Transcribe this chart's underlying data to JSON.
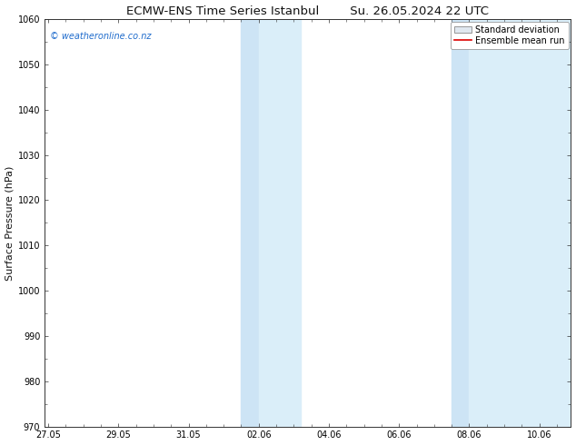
{
  "title": "ECMW-ENS Time Series Istanbul        Su. 26.05.2024 22 UTC",
  "ylabel": "Surface Pressure (hPa)",
  "ylim": [
    970,
    1060
  ],
  "yticks": [
    970,
    980,
    990,
    1000,
    1010,
    1020,
    1030,
    1040,
    1050,
    1060
  ],
  "xtick_labels": [
    "27.05",
    "29.05",
    "31.05",
    "02.06",
    "04.06",
    "06.06",
    "08.06",
    "10.06"
  ],
  "xtick_positions": [
    0,
    2,
    4,
    6,
    8,
    10,
    12,
    14
  ],
  "x_min": -0.1,
  "x_max": 14.9,
  "shaded_bands": [
    {
      "x_start": 5.5,
      "x_end": 6.0,
      "color": "#cde4f5",
      "alpha": 1.0
    },
    {
      "x_start": 6.0,
      "x_end": 7.2,
      "color": "#daeef9",
      "alpha": 1.0
    },
    {
      "x_start": 11.5,
      "x_end": 12.0,
      "color": "#cde4f5",
      "alpha": 1.0
    },
    {
      "x_start": 12.0,
      "x_end": 14.9,
      "color": "#daeef9",
      "alpha": 1.0
    }
  ],
  "watermark_text": "© weatheronline.co.nz",
  "watermark_color": "#1e6bcc",
  "watermark_fontsize": 7,
  "legend_std_label": "Standard deviation",
  "legend_mean_label": "Ensemble mean run",
  "legend_mean_color": "#dd0000",
  "background_color": "#ffffff",
  "spine_color": "#333333",
  "title_fontsize": 9.5,
  "ylabel_fontsize": 8,
  "tick_fontsize": 7,
  "legend_fontsize": 7
}
